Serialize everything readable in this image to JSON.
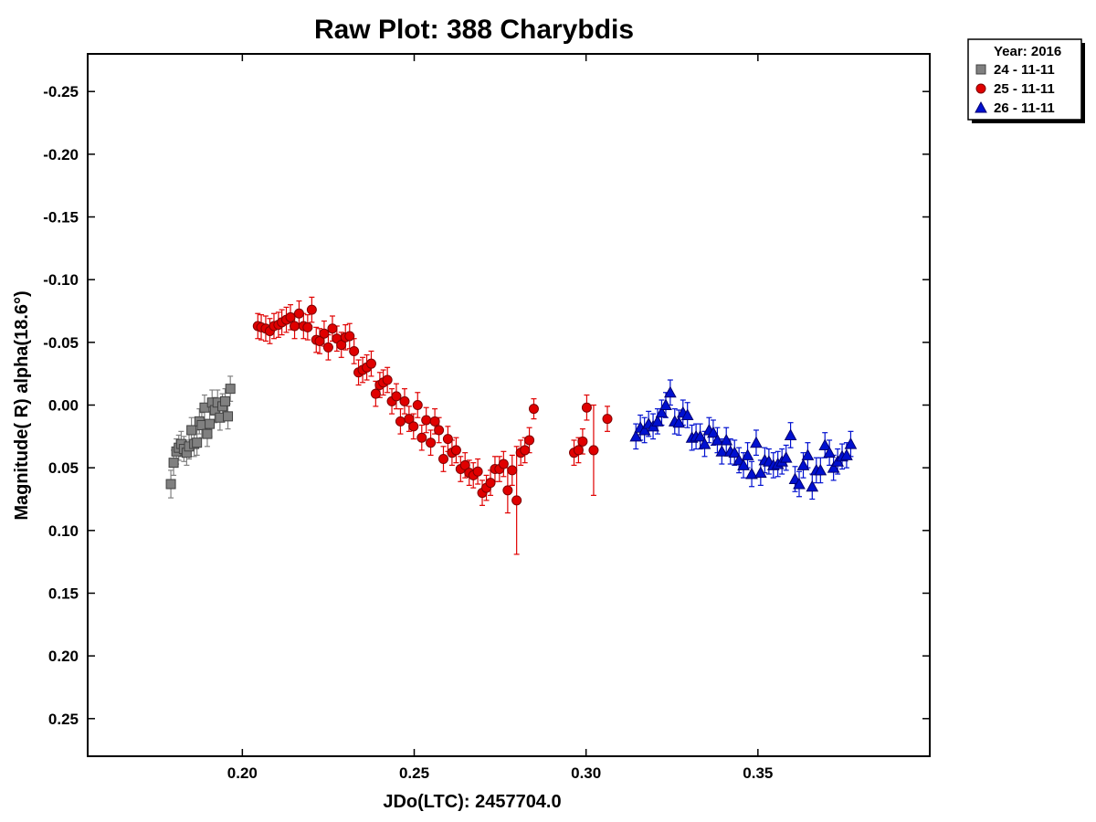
{
  "chart_data": {
    "type": "scatter",
    "title": "Raw Plot: 388 Charybdis",
    "xlabel": "JDo(LTC): 2457704.0",
    "ylabel": "Magnitude( R) alpha(18.6°)",
    "xlim": [
      0.155,
      0.4
    ],
    "ylim": [
      0.28,
      -0.28
    ],
    "y_inverted": true,
    "x_ticks": [
      "0.20",
      "0.25",
      "0.30",
      "0.35"
    ],
    "y_ticks": [
      "-0.25",
      "-0.20",
      "-0.15",
      "-0.10",
      "-0.05",
      "0.00",
      "0.05",
      "0.10",
      "0.15",
      "0.20",
      "0.25"
    ],
    "grid": false,
    "legend": {
      "placement": "outside-top-right",
      "header": "Year: 2016"
    },
    "series": [
      {
        "name": "24 - 11-11",
        "marker": "square",
        "color": "#808080",
        "edge_color": "#404040",
        "x": [
          0.1792,
          0.18,
          0.1808,
          0.1815,
          0.1822,
          0.183,
          0.1838,
          0.1845,
          0.1852,
          0.186,
          0.1868,
          0.1875,
          0.1882,
          0.189,
          0.1898,
          0.1905,
          0.1912,
          0.192,
          0.1928,
          0.1935,
          0.1942,
          0.195,
          0.1958,
          0.1965
        ],
        "y": [
          0.063,
          0.046,
          0.037,
          0.034,
          0.031,
          0.035,
          0.038,
          0.033,
          0.02,
          0.031,
          0.03,
          0.013,
          0.016,
          0.002,
          0.023,
          0.015,
          -0.002,
          0.004,
          -0.002,
          0.01,
          0.001,
          -0.003,
          0.009,
          -0.013
        ],
        "err": [
          0.011,
          0.01,
          0.01,
          0.01,
          0.01,
          0.01,
          0.01,
          0.01,
          0.01,
          0.01,
          0.01,
          0.01,
          0.01,
          0.01,
          0.01,
          0.01,
          0.01,
          0.01,
          0.01,
          0.01,
          0.01,
          0.01,
          0.01,
          0.01
        ]
      },
      {
        "name": "25 - 11-11",
        "marker": "circle",
        "color": "#e00000",
        "edge_color": "#800000",
        "x": [
          0.2045,
          0.2055,
          0.2068,
          0.208,
          0.2092,
          0.2105,
          0.2115,
          0.2128,
          0.214,
          0.2152,
          0.2165,
          0.2178,
          0.219,
          0.2202,
          0.2215,
          0.2225,
          0.2238,
          0.225,
          0.2262,
          0.2275,
          0.2288,
          0.23,
          0.2312,
          0.2325,
          0.2338,
          0.235,
          0.2362,
          0.2375,
          0.2388,
          0.24,
          0.241,
          0.2422,
          0.2435,
          0.2448,
          0.246,
          0.2472,
          0.2485,
          0.2498,
          0.251,
          0.2522,
          0.2535,
          0.2548,
          0.256,
          0.2572,
          0.2585,
          0.2598,
          0.261,
          0.2622,
          0.2635,
          0.2648,
          0.266,
          0.2672,
          0.2685,
          0.2698,
          0.271,
          0.2722,
          0.2735,
          0.2748,
          0.276,
          0.2772,
          0.2785,
          0.2798,
          0.281,
          0.2822,
          0.2835,
          0.2848,
          0.2965,
          0.2978,
          0.299,
          0.3002,
          0.3022,
          0.3062
        ],
        "y": [
          -0.063,
          -0.062,
          -0.061,
          -0.059,
          -0.063,
          -0.064,
          -0.066,
          -0.068,
          -0.07,
          -0.063,
          -0.073,
          -0.063,
          -0.062,
          -0.076,
          -0.052,
          -0.051,
          -0.057,
          -0.046,
          -0.061,
          -0.053,
          -0.048,
          -0.054,
          -0.055,
          -0.043,
          -0.026,
          -0.028,
          -0.03,
          -0.033,
          -0.009,
          -0.016,
          -0.018,
          -0.02,
          -0.003,
          -0.007,
          0.013,
          -0.003,
          0.011,
          0.017,
          0.0,
          0.026,
          0.012,
          0.03,
          0.013,
          0.02,
          0.043,
          0.027,
          0.038,
          0.036,
          0.051,
          0.048,
          0.054,
          0.056,
          0.053,
          0.07,
          0.066,
          0.062,
          0.051,
          0.051,
          0.047,
          0.068,
          0.052,
          0.076,
          0.038,
          0.036,
          0.028,
          0.003,
          0.038,
          0.036,
          0.029,
          0.002,
          0.036,
          0.011
        ],
        "err": [
          0.01,
          0.01,
          0.01,
          0.01,
          0.01,
          0.01,
          0.01,
          0.01,
          0.01,
          0.01,
          0.01,
          0.01,
          0.01,
          0.01,
          0.01,
          0.01,
          0.01,
          0.01,
          0.01,
          0.01,
          0.01,
          0.01,
          0.01,
          0.01,
          0.01,
          0.01,
          0.01,
          0.01,
          0.01,
          0.01,
          0.01,
          0.01,
          0.01,
          0.01,
          0.01,
          0.01,
          0.01,
          0.01,
          0.01,
          0.01,
          0.01,
          0.01,
          0.01,
          0.01,
          0.01,
          0.01,
          0.01,
          0.01,
          0.01,
          0.01,
          0.01,
          0.01,
          0.01,
          0.01,
          0.01,
          0.01,
          0.01,
          0.01,
          0.01,
          0.018,
          0.012,
          0.043,
          0.01,
          0.01,
          0.01,
          0.008,
          0.01,
          0.01,
          0.01,
          0.01,
          0.036,
          0.01
        ]
      },
      {
        "name": "26 - 11-11",
        "marker": "triangle",
        "color": "#0010d0",
        "edge_color": "#000070",
        "x": [
          0.3145,
          0.3158,
          0.317,
          0.3182,
          0.3195,
          0.3208,
          0.322,
          0.3232,
          0.3245,
          0.3258,
          0.327,
          0.3282,
          0.3295,
          0.3308,
          0.332,
          0.3332,
          0.3345,
          0.3358,
          0.337,
          0.3382,
          0.3395,
          0.3408,
          0.342,
          0.3432,
          0.3445,
          0.3458,
          0.347,
          0.3482,
          0.3495,
          0.3508,
          0.352,
          0.3532,
          0.3545,
          0.3558,
          0.357,
          0.3582,
          0.3595,
          0.3608,
          0.362,
          0.3632,
          0.3645,
          0.3658,
          0.367,
          0.3682,
          0.3695,
          0.3708,
          0.372,
          0.3732,
          0.3745,
          0.3758,
          0.377
        ],
        "y": [
          0.025,
          0.018,
          0.02,
          0.015,
          0.017,
          0.013,
          0.006,
          0.0,
          -0.01,
          0.013,
          0.014,
          0.006,
          0.008,
          0.026,
          0.025,
          0.025,
          0.031,
          0.02,
          0.022,
          0.028,
          0.037,
          0.028,
          0.037,
          0.038,
          0.044,
          0.048,
          0.04,
          0.055,
          0.03,
          0.054,
          0.044,
          0.045,
          0.048,
          0.047,
          0.045,
          0.042,
          0.024,
          0.059,
          0.063,
          0.048,
          0.04,
          0.065,
          0.052,
          0.052,
          0.032,
          0.038,
          0.05,
          0.045,
          0.041,
          0.04,
          0.031
        ],
        "err": [
          0.01,
          0.01,
          0.01,
          0.01,
          0.01,
          0.01,
          0.01,
          0.01,
          0.01,
          0.01,
          0.01,
          0.01,
          0.01,
          0.01,
          0.01,
          0.01,
          0.01,
          0.01,
          0.01,
          0.01,
          0.01,
          0.01,
          0.01,
          0.01,
          0.01,
          0.01,
          0.01,
          0.01,
          0.01,
          0.01,
          0.01,
          0.01,
          0.01,
          0.01,
          0.01,
          0.01,
          0.01,
          0.01,
          0.01,
          0.01,
          0.01,
          0.01,
          0.01,
          0.01,
          0.01,
          0.01,
          0.01,
          0.01,
          0.01,
          0.01,
          0.01
        ]
      }
    ]
  }
}
